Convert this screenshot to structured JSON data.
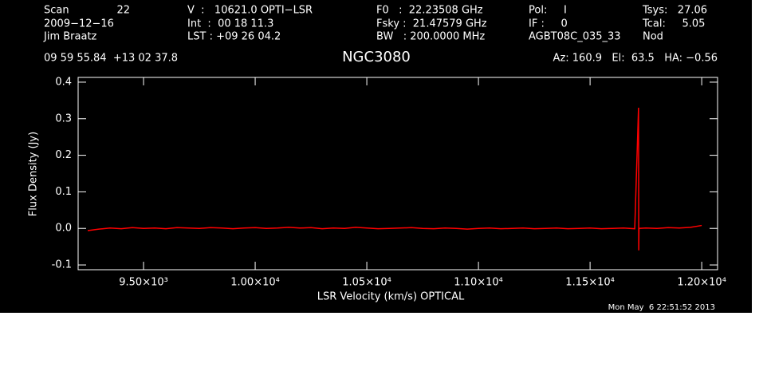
{
  "chart_data": {
    "type": "line",
    "title": "NGC3080",
    "header": [
      [
        "Scan",
        "22",
        "V  :   10621.0 OPTI−LSR",
        "F0   :  22.23508 GHz",
        "Pol:     I",
        "Tsys:   27.06"
      ],
      [
        "2009−12−16",
        "Int  :  00 18 11.3",
        "Fsky :  21.47579 GHz",
        "IF :     0",
        "Tcal:     5.05"
      ],
      [
        "Jim Braatz",
        "LST : +09 26 04.2",
        "BW   : 200.0000 MHz",
        "AGBT08C_035_33",
        "Nod"
      ]
    ],
    "coordinates": "09 59 55.84  +13 02 37.8",
    "pointing": "Az: 160.9   El:  63.5   HA: −0.56",
    "timestamp": "Mon May  6 22:51:52 2013",
    "x_label": "LSR Velocity (km/s) OPTICAL",
    "y_label": "Flux Density (Jy)",
    "xlim": [
      9207,
      12071
    ],
    "ylim": [
      -0.113,
      0.413
    ],
    "xticks": [
      {
        "value": 9500,
        "label": "9.50×10³"
      },
      {
        "value": 10000,
        "label": "1.00×10⁴"
      },
      {
        "value": 10500,
        "label": "1.05×10⁴"
      },
      {
        "value": 11000,
        "label": "1.10×10⁴"
      },
      {
        "value": 11500,
        "label": "1.15×10⁴"
      },
      {
        "value": 12000,
        "label": "1.20×10⁴"
      }
    ],
    "yticks": [
      -0.1,
      {
        "value": 0,
        "label": "0.0"
      },
      0.1,
      0.2,
      0.3,
      0.4
    ],
    "series": [
      {
        "color": "#ff0000",
        "x": [
          9250,
          9300,
          9350,
          9400,
          9450,
          9500,
          9550,
          9600,
          9650,
          9700,
          9750,
          9800,
          9850,
          9900,
          9950,
          10000,
          10050,
          10100,
          10150,
          10200,
          10250,
          10300,
          10350,
          10400,
          10450,
          10500,
          10550,
          10600,
          10650,
          10700,
          10750,
          10800,
          10850,
          10900,
          10950,
          11000,
          11050,
          11100,
          11150,
          11200,
          11250,
          11300,
          11350,
          11400,
          11450,
          11500,
          11550,
          11600,
          11650,
          11700,
          11717,
          11718,
          11719,
          11750,
          11800,
          11850,
          11900,
          11950,
          12000
        ],
        "values": [
          -0.006,
          -0.002,
          0.001,
          -0.001,
          0.002,
          0.0,
          0.001,
          -0.001,
          0.002,
          0.001,
          0.0,
          0.002,
          0.001,
          -0.001,
          0.001,
          0.002,
          0.0,
          0.001,
          0.003,
          0.001,
          0.002,
          -0.001,
          0.001,
          0.0,
          0.003,
          0.001,
          -0.001,
          0.0,
          0.001,
          0.002,
          0.0,
          -0.001,
          0.001,
          0.0,
          -0.002,
          0.0,
          0.001,
          -0.001,
          0.0,
          0.001,
          -0.001,
          0.0,
          0.001,
          -0.001,
          0.0,
          0.001,
          -0.001,
          0.0,
          0.001,
          -0.001,
          0.33,
          -0.06,
          0.0,
          0.001,
          0.0,
          0.002,
          0.001,
          0.003,
          0.008
        ]
      }
    ]
  }
}
